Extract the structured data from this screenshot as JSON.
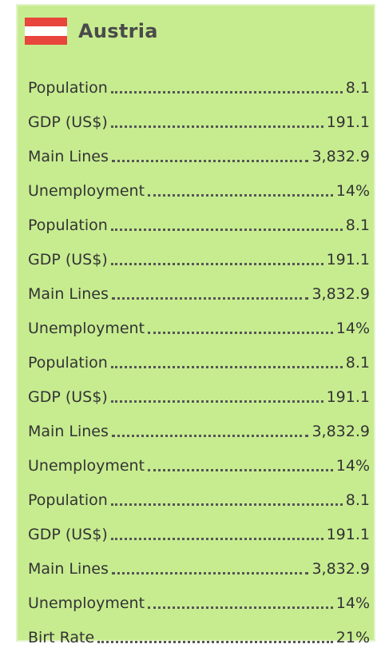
{
  "header": {
    "title": "Austria"
  },
  "rows": [
    [
      "Population",
      "8.1"
    ],
    [
      "GDP (US$)",
      "191.1"
    ],
    [
      "Main Lines",
      "3,832.9"
    ],
    [
      "Unemployment",
      "14%"
    ],
    [
      "Population",
      "8.1"
    ],
    [
      "GDP (US$)",
      "191.1"
    ],
    [
      "Main Lines",
      "3,832.9"
    ],
    [
      "Unemployment",
      "14%"
    ],
    [
      "Population",
      "8.1"
    ],
    [
      "GDP (US$)",
      "191.1"
    ],
    [
      "Main Lines",
      "3,832.9"
    ],
    [
      "Unemployment",
      "14%"
    ],
    [
      "Population",
      "8.1"
    ],
    [
      "GDP (US$)",
      "191.1"
    ],
    [
      "Main Lines",
      "3,832.9"
    ],
    [
      "Unemployment",
      "14%"
    ],
    [
      "Birt Rate",
      "21%"
    ]
  ]
}
